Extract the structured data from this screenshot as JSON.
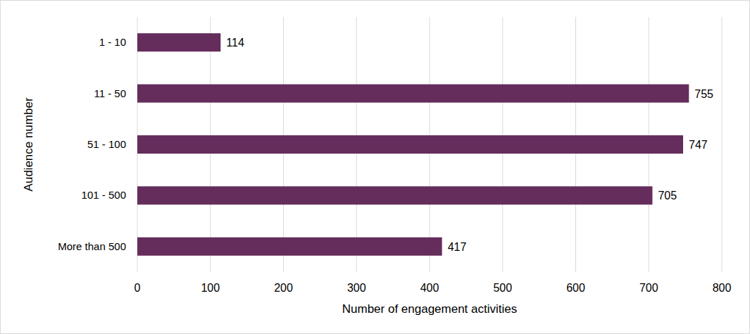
{
  "chart_data": {
    "type": "bar",
    "orientation": "horizontal",
    "categories": [
      "1 - 10",
      "11 - 50",
      "51 - 100",
      "101 - 500",
      "More than 500"
    ],
    "values": [
      114,
      755,
      747,
      705,
      417
    ],
    "color": "#652d5c",
    "xlim": [
      0,
      800
    ],
    "xticks": [
      0,
      100,
      200,
      300,
      400,
      500,
      600,
      700,
      800
    ],
    "xlabel": "Number of engagement activities",
    "ylabel": "Audience number",
    "grid": true,
    "data_labels": true
  }
}
